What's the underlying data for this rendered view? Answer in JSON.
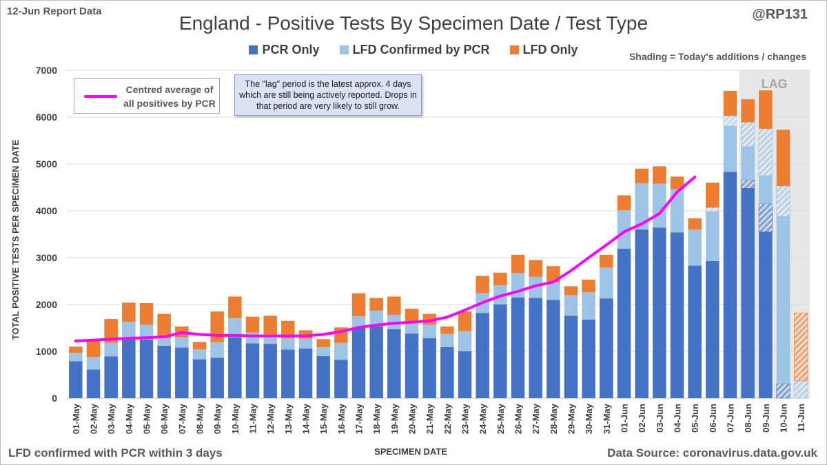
{
  "header": {
    "report_tag": "12-Jun Report Data",
    "author": "@RP131",
    "shading_note": "Shading = Today's additions / changes"
  },
  "footer": {
    "left_note": "LFD confirmed with PCR within 3 days",
    "source": "Data Source: coronavirus.data.gov.uk"
  },
  "avg_legend_text": [
    "Centred average of",
    "all positives by PCR"
  ],
  "lag_note": "The \"lag\" period is the latest approx. 4 days which are still being actively reported.  Drops in that period are very likely to still grow.",
  "lag_label": "LAG",
  "colors": {
    "pcr": "#4472c4",
    "lfd_confirmed": "#9dc3e6",
    "lfd_only": "#ed7d31",
    "average": "#ff00ff",
    "lag_shade": "#e7e7e7"
  },
  "chart_data": {
    "type": "bar",
    "stacked": true,
    "title": "England - Positive Tests By Specimen Date / Test Type",
    "xlabel": "SPECIMEN DATE",
    "ylabel": "TOTAL POSITIVE TESTS PER SPECIMEN DATE",
    "ylim": [
      0,
      7000
    ],
    "yticks": [
      0,
      1000,
      2000,
      3000,
      4000,
      5000,
      6000,
      7000
    ],
    "grid": true,
    "legend_position": "top",
    "lag_categories": [
      "08-Jun",
      "09-Jun",
      "10-Jun",
      "11-Jun"
    ],
    "categories": [
      "01-May",
      "02-May",
      "03-May",
      "04-May",
      "05-May",
      "06-May",
      "07-May",
      "08-May",
      "09-May",
      "10-May",
      "11-May",
      "12-May",
      "13-May",
      "14-May",
      "15-May",
      "16-May",
      "17-May",
      "18-May",
      "19-May",
      "20-May",
      "21-May",
      "22-May",
      "23-May",
      "24-May",
      "25-May",
      "26-May",
      "27-May",
      "28-May",
      "29-May",
      "30-May",
      "31-May",
      "01-Jun",
      "02-Jun",
      "03-Jun",
      "04-Jun",
      "05-Jun",
      "06-Jun",
      "07-Jun",
      "08-Jun",
      "09-Jun",
      "10-Jun",
      "11-Jun"
    ],
    "series": [
      {
        "name": "PCR Only",
        "values": [
          790,
          610,
          890,
          1250,
          1250,
          1120,
          1080,
          830,
          860,
          1300,
          1170,
          1160,
          1040,
          1060,
          900,
          820,
          1500,
          1530,
          1470,
          1380,
          1280,
          1090,
          1000,
          1820,
          2000,
          2150,
          2140,
          2100,
          1760,
          1680,
          2130,
          3190,
          3600,
          3640,
          3540,
          2830,
          2930,
          4830,
          4660,
          4150,
          310,
          0
        ]
      },
      {
        "name": "LFD Confirmed by PCR",
        "values": [
          180,
          270,
          290,
          380,
          320,
          160,
          220,
          210,
          340,
          410,
          230,
          170,
          240,
          210,
          190,
          360,
          250,
          340,
          310,
          260,
          290,
          280,
          430,
          420,
          410,
          520,
          450,
          370,
          440,
          580,
          660,
          820,
          990,
          940,
          920,
          770,
          1140,
          1200,
          1230,
          1600,
          4220,
          370
        ]
      },
      {
        "name": "LFD Only",
        "values": [
          130,
          340,
          510,
          410,
          460,
          520,
          230,
          160,
          650,
          460,
          340,
          430,
          370,
          180,
          170,
          330,
          490,
          270,
          390,
          270,
          230,
          160,
          420,
          370,
          270,
          390,
          360,
          350,
          190,
          270,
          270,
          320,
          310,
          370,
          270,
          240,
          530,
          530,
          490,
          820,
          1200,
          1450
        ]
      }
    ],
    "shaded_today": {
      "PCR Only": [
        0,
        0,
        0,
        0,
        0,
        0,
        0,
        0,
        0,
        0,
        0,
        0,
        0,
        0,
        0,
        0,
        0,
        0,
        0,
        0,
        0,
        0,
        0,
        0,
        0,
        0,
        0,
        0,
        0,
        0,
        0,
        0,
        0,
        0,
        0,
        0,
        0,
        0,
        180,
        600,
        3710,
        0
      ],
      "LFD Confirmed by PCR": [
        0,
        0,
        0,
        0,
        0,
        0,
        0,
        0,
        0,
        0,
        0,
        0,
        0,
        0,
        0,
        0,
        0,
        0,
        0,
        0,
        0,
        0,
        0,
        0,
        0,
        0,
        0,
        0,
        0,
        0,
        0,
        0,
        0,
        0,
        0,
        0,
        90,
        220,
        520,
        1000,
        650,
        370
      ],
      "LFD Only": [
        0,
        0,
        0,
        0,
        0,
        0,
        0,
        0,
        0,
        0,
        0,
        0,
        0,
        0,
        0,
        0,
        0,
        0,
        0,
        0,
        0,
        0,
        0,
        0,
        0,
        0,
        0,
        0,
        0,
        0,
        0,
        0,
        0,
        0,
        0,
        0,
        0,
        0,
        0,
        0,
        0,
        1450
      ]
    },
    "average_series": {
      "name": "Centred average of all positives by PCR",
      "values": [
        1220,
        1240,
        1260,
        1280,
        1290,
        1310,
        1400,
        1360,
        1340,
        1340,
        1330,
        1330,
        1330,
        1330,
        1360,
        1420,
        1510,
        1560,
        1600,
        1620,
        1650,
        1730,
        1880,
        2040,
        2180,
        2280,
        2400,
        2480,
        2720,
        3000,
        3270,
        3550,
        3720,
        3940,
        4400,
        4720,
        null,
        null,
        null,
        null,
        null,
        null
      ]
    }
  }
}
